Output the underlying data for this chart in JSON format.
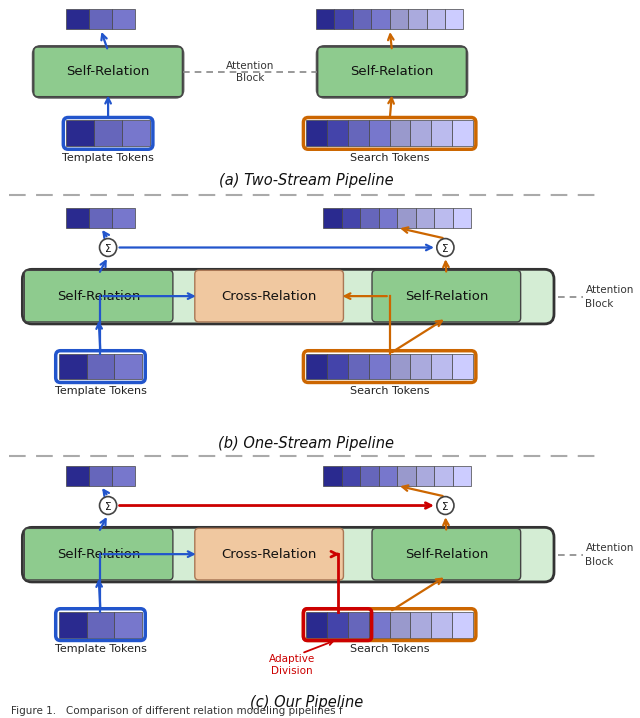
{
  "bg_color": "#ffffff",
  "section_a_title": "(a) Two-Stream Pipeline",
  "section_b_title": "(b) One-Stream Pipeline",
  "section_c_title": "(c) Our Pipeline",
  "footer": "Figure 1.   Comparison of different relation modeling pipelines f",
  "green_box_face": "#8ecb8e",
  "green_outer_face": "#d4edd4",
  "orange_box_face": "#f0c8a0",
  "blue_border_color": "#2255cc",
  "orange_border_color": "#cc6600",
  "red_color": "#cc0000",
  "token_dark": "#2a2a8f",
  "token_mid1": "#4444aa",
  "token_mid2": "#6666bb",
  "token_mid3": "#7777cc",
  "token_light1": "#9999cc",
  "token_light2": "#aaaadd",
  "token_light3": "#bbbbee",
  "token_lighter": "#ccccff",
  "dashed_color": "#888888",
  "sep_color": "#aaaaaa"
}
